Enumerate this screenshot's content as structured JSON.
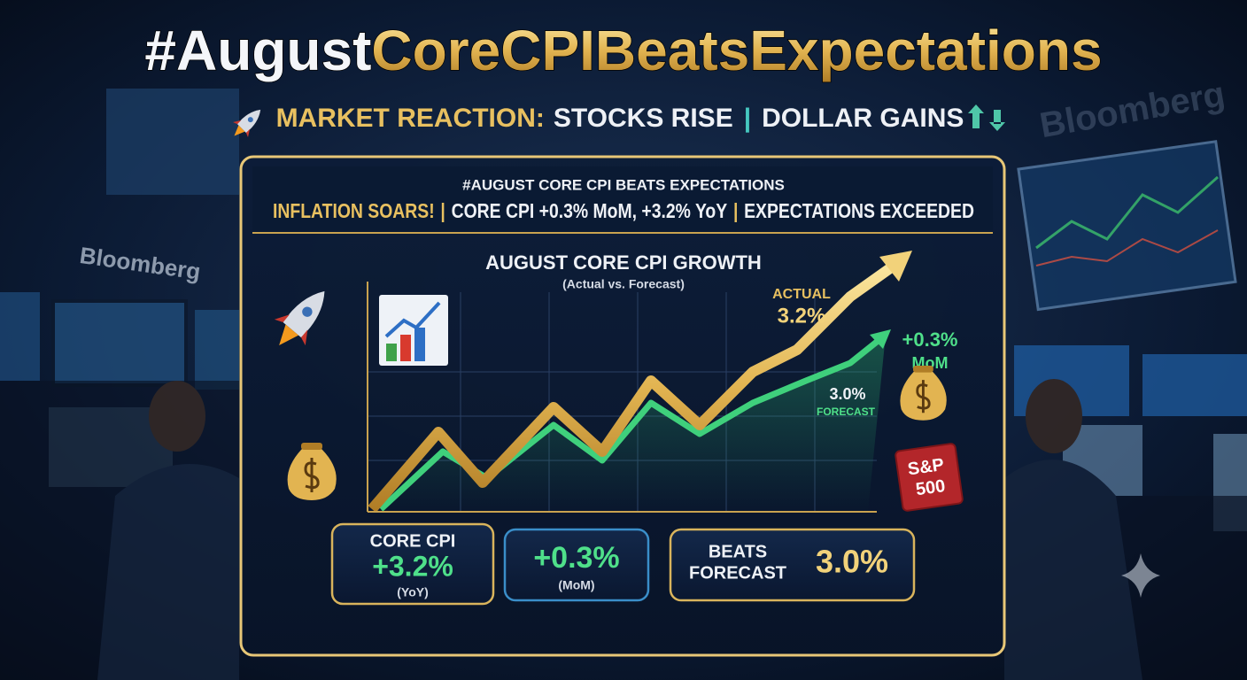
{
  "header": {
    "title_part1": "#August",
    "title_part2": "CoreCPIBeatsExpectations",
    "reaction_label": "MARKET REACTION:",
    "reaction_stocks": "STOCKS RISE",
    "separator": "|",
    "reaction_dollar": "DOLLAR GAINS"
  },
  "background": {
    "brand": "Bloomberg",
    "brand_right": "Bloomberg"
  },
  "panel": {
    "hashtag": "#AUGUST CORE CPI BEATS EXPECTATIONS",
    "headline": "INFLATION SOARS!",
    "detail": "CORE CPI +0.3% MoM, +3.2% YoY",
    "outcome": "EXPECTATIONS EXCEEDED"
  },
  "chart": {
    "title": "AUGUST CORE CPI GROWTH",
    "subtitle": "(Actual vs. Forecast)",
    "actual_label": "ACTUAL",
    "actual_value": "3.2%",
    "mom_value": "+0.3%",
    "mom_label": "MoM",
    "forecast_value": "3.0%",
    "forecast_label": "FORECAST",
    "badge_line1": "S&P",
    "badge_line2": "500"
  },
  "cards": [
    {
      "title": "CORE CPI",
      "value": "+3.2%",
      "note": "(YoY)"
    },
    {
      "value": "+0.3%",
      "note": "(MoM)"
    },
    {
      "title_line1": "BEATS",
      "title_line2": "FORECAST",
      "value": "3.0%"
    }
  ]
}
